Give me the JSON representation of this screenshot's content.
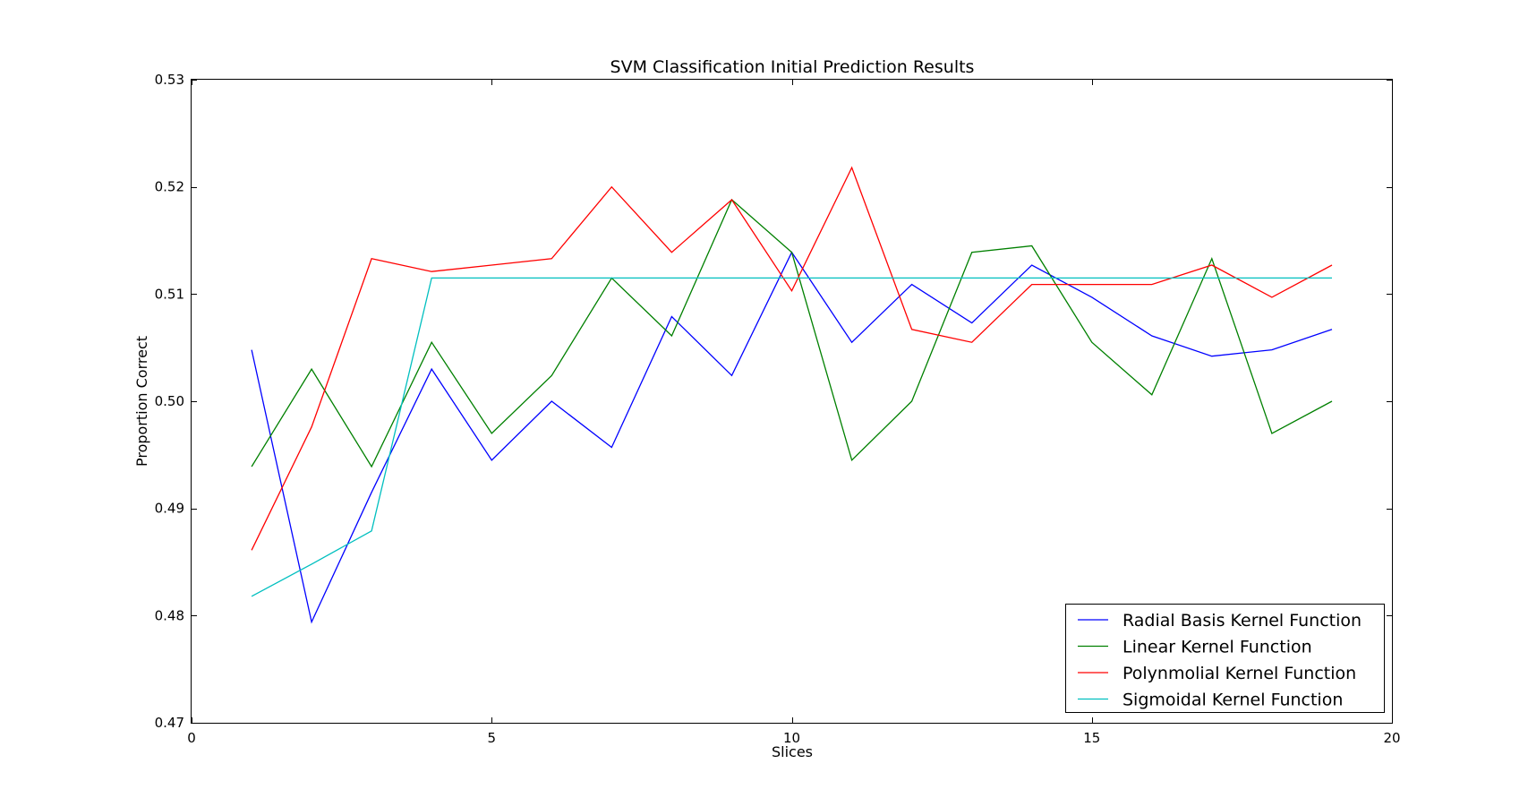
{
  "chart_data": {
    "type": "line",
    "title": "SVM Classification Initial Prediction Results",
    "xlabel": "Slices",
    "ylabel": "Proportion Correct",
    "xlim": [
      0,
      20
    ],
    "ylim": [
      0.47,
      0.53
    ],
    "xticks": [
      0,
      5,
      10,
      15,
      20
    ],
    "xtick_labels": [
      "0",
      "5",
      "10",
      "15",
      "20"
    ],
    "yticks": [
      0.47,
      0.48,
      0.49,
      0.5,
      0.51,
      0.52,
      0.53
    ],
    "ytick_labels": [
      "0.47",
      "0.48",
      "0.49",
      "0.50",
      "0.51",
      "0.52",
      "0.53"
    ],
    "grid": false,
    "legend_position": "bottom-right",
    "x": [
      1,
      2,
      3,
      4,
      5,
      6,
      7,
      8,
      9,
      10,
      11,
      12,
      13,
      14,
      15,
      16,
      17,
      18,
      19
    ],
    "series": [
      {
        "name": "Radial Basis Kernel Function",
        "color": "#0000ff",
        "values": [
          0.5048,
          0.4794,
          0.4915,
          0.503,
          0.4945,
          0.5,
          0.4957,
          0.5079,
          0.5024,
          0.5139,
          0.5055,
          0.5109,
          0.5073,
          0.5127,
          0.5097,
          0.5061,
          0.5042,
          0.5048,
          0.5067
        ]
      },
      {
        "name": "Linear Kernel Function",
        "color": "#008000",
        "values": [
          0.4939,
          0.503,
          0.4939,
          0.5055,
          0.497,
          0.5024,
          0.5115,
          0.5061,
          0.5188,
          0.5139,
          0.4945,
          0.5,
          0.5139,
          0.5145,
          0.5055,
          0.5006,
          0.5133,
          0.497,
          0.5
        ]
      },
      {
        "name": "Polynmolial Kernel Function",
        "color": "#ff0000",
        "values": [
          0.4861,
          0.4976,
          0.5133,
          0.5121,
          0.5127,
          0.5133,
          0.52,
          0.5139,
          0.5188,
          0.5103,
          0.5218,
          0.5067,
          0.5055,
          0.5109,
          0.5109,
          0.5109,
          0.5127,
          0.5097,
          0.5127
        ]
      },
      {
        "name": "Sigmoidal Kernel Function",
        "color": "#00bfbf",
        "values": [
          0.4818,
          0.4848,
          0.4879,
          0.5115,
          0.5115,
          0.5115,
          0.5115,
          0.5115,
          0.5115,
          0.5115,
          0.5115,
          0.5115,
          0.5115,
          0.5115,
          0.5115,
          0.5115,
          0.5115,
          0.5115,
          0.5115
        ]
      }
    ]
  }
}
